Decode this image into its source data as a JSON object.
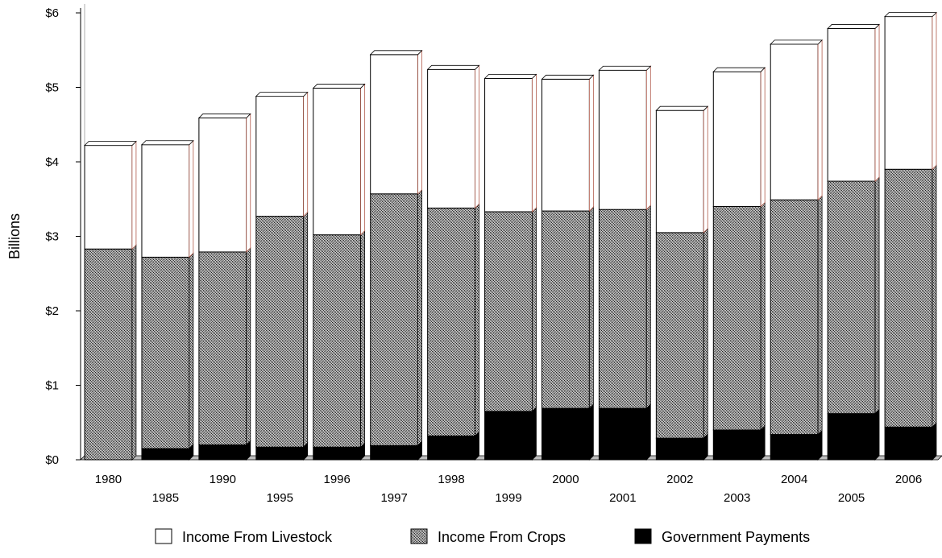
{
  "chart_data": {
    "type": "bar",
    "stacked": true,
    "style": "3d",
    "ylabel": "Billions",
    "xlabel": "",
    "ylim": [
      0,
      6
    ],
    "yticks": [
      "$0",
      "$1",
      "$2",
      "$3",
      "$4",
      "$5",
      "$6"
    ],
    "grid": false,
    "legend_position": "bottom",
    "categories": [
      "1980",
      "1985",
      "1990",
      "1995",
      "1996",
      "1997",
      "1998",
      "1999",
      "2000",
      "2001",
      "2002",
      "2003",
      "2004",
      "2005",
      "2006"
    ],
    "series": [
      {
        "name": "Government Payments",
        "pattern": "solid",
        "color": "#000000",
        "values": [
          0.0,
          0.15,
          0.2,
          0.17,
          0.17,
          0.19,
          0.32,
          0.65,
          0.69,
          0.69,
          0.29,
          0.4,
          0.34,
          0.62,
          0.44
        ]
      },
      {
        "name": "Income From Crops",
        "pattern": "stipple",
        "color": "#8a8a8a",
        "values": [
          2.83,
          2.57,
          2.59,
          3.1,
          2.85,
          3.38,
          3.06,
          2.68,
          2.65,
          2.67,
          2.76,
          3.0,
          3.15,
          3.12,
          3.46
        ]
      },
      {
        "name": "Income From Livestock",
        "pattern": "white",
        "color": "#ffffff",
        "values": [
          1.39,
          1.51,
          1.8,
          1.61,
          1.97,
          1.87,
          1.86,
          1.79,
          1.77,
          1.87,
          1.64,
          1.81,
          2.09,
          2.05,
          2.05
        ]
      }
    ],
    "legend_order": [
      "Income From Livestock",
      "Income From Crops",
      "Government Payments"
    ]
  }
}
